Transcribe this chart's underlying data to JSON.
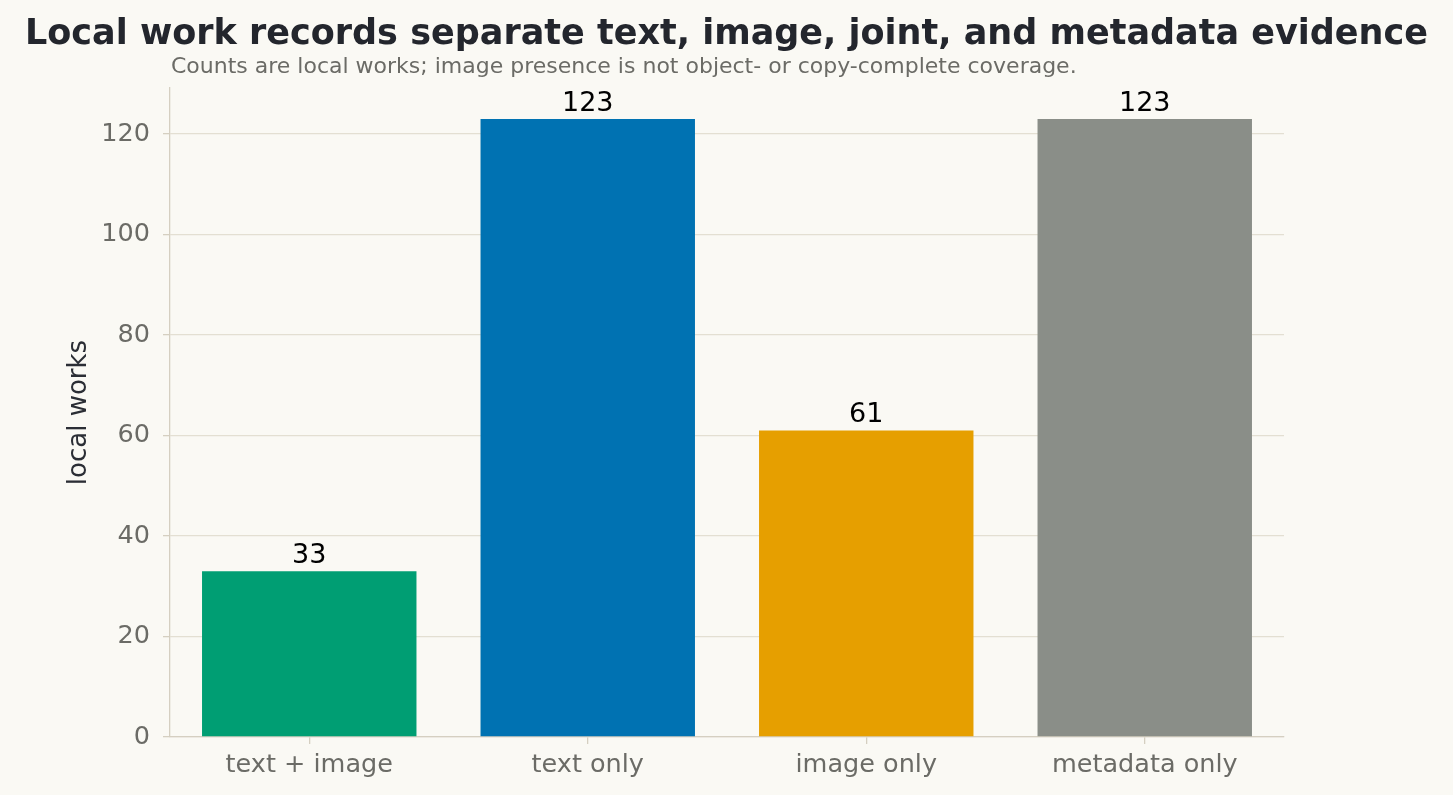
{
  "chart_data": {
    "type": "bar",
    "title": "Local work records separate text, image, joint, and metadata evidence",
    "subtitle": "Counts are local works; image presence is not object- or copy-complete coverage.",
    "ylabel": "local works",
    "categories": [
      "text + image",
      "text only",
      "image only",
      "metadata only"
    ],
    "values": [
      33,
      123,
      61,
      123
    ],
    "colors": [
      "#009e73",
      "#0072b2",
      "#e69f00",
      "#8a8e88"
    ],
    "ylim": [
      0,
      129.15
    ],
    "yticks": [
      0,
      20,
      40,
      60,
      80,
      100,
      120
    ],
    "grid": "y",
    "data_labels": true
  }
}
